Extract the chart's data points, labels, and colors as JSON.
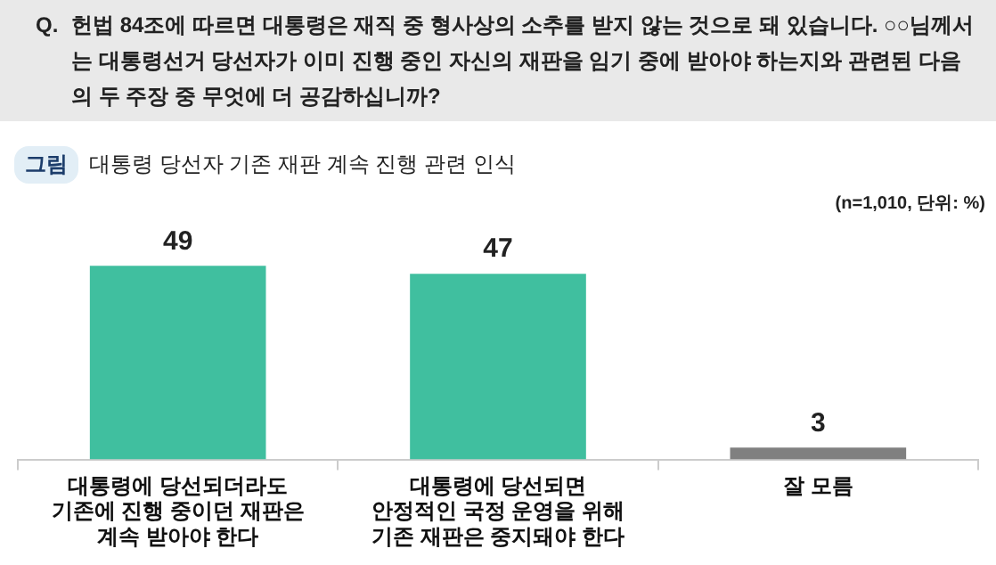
{
  "chart_data": {
    "type": "bar",
    "title": "Q. 헌법 84조에 따르면 대통령은 재직 중 형사상의 소추를 받지 않는 것으로 돼 있습니다. ○○님께서는 대통령선거 당선자가 이미 진행 중인 자신의 재판을 임기 중에 받아야 하는지와 관련된 다음의 두 주장 중 무엇에 더 공감하십니까?",
    "subtitle": "그림 대통령 당선자 기존 재판 계속 진행 관련 인식",
    "annotations": [
      "(n=1,010, 단위: %)"
    ],
    "categories": [
      "대통령에 당선되더라도 기존에 진행 중이던 재판은 계속 받아야 한다",
      "대통령에 당선되면 안정적인 국정 운영을 위해 기존 재판은 중지돼야 한다",
      "잘 모름"
    ],
    "values": [
      49,
      47,
      3
    ],
    "colors": [
      "#40bf9f",
      "#40bf9f",
      "#808080"
    ],
    "data_labels": true,
    "grid": false,
    "legend": false
  }
}
